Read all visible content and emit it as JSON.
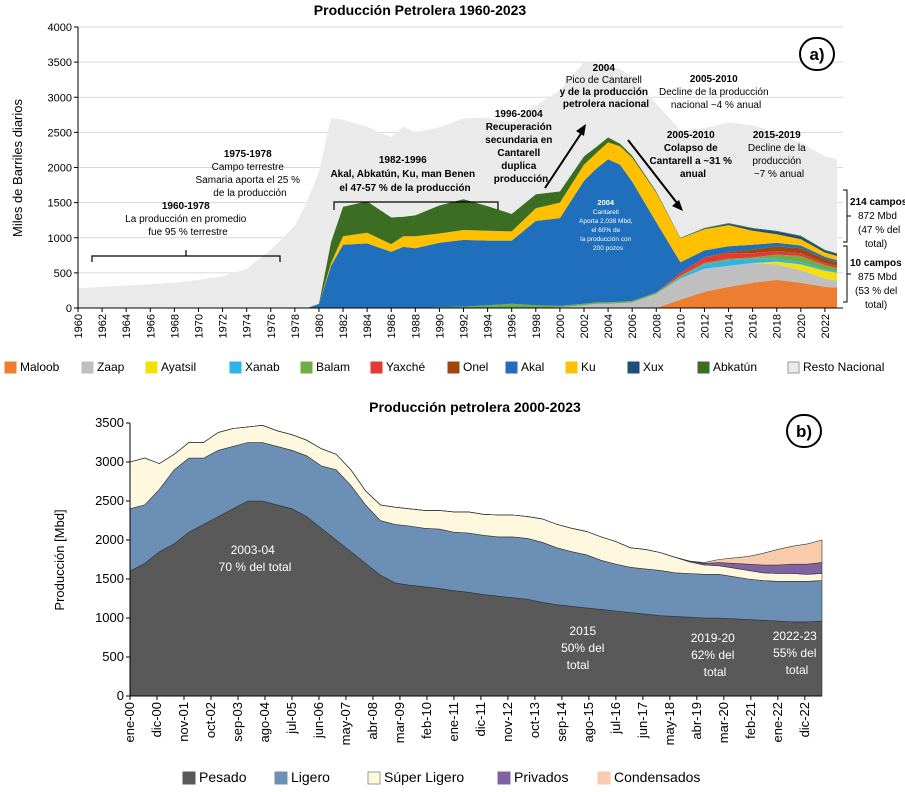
{
  "chart_data": [
    {
      "type": "area",
      "badge": "a)",
      "title": "Producción Petrolera 1960-2023",
      "ylabel": "Miles de Barriles diarios",
      "xlabel": "",
      "ylim": [
        0,
        4000
      ],
      "yticks": [
        "0",
        "500",
        "1000",
        "1500",
        "2000",
        "2500",
        "3000",
        "3500",
        "4000"
      ],
      "x": [
        1960,
        1962,
        1964,
        1966,
        1968,
        1970,
        1972,
        1974,
        1976,
        1978,
        1979,
        1980,
        1981,
        1982,
        1984,
        1986,
        1987,
        1988,
        1990,
        1992,
        1994,
        1996,
        1998,
        2000,
        2002,
        2003,
        2004,
        2005,
        2006,
        2008,
        2010,
        2012,
        2014,
        2016,
        2018,
        2020,
        2022,
        2023
      ],
      "xtick_labels": [
        "1960",
        "1962",
        "1964",
        "1966",
        "1968",
        "1970",
        "1972",
        "1974",
        "1976",
        "1978",
        "1980",
        "1982",
        "1984",
        "1986",
        "1988",
        "1990",
        "1992",
        "1994",
        "1996",
        "1998",
        "2000",
        "2002",
        "2004",
        "2006",
        "2008",
        "2010",
        "2012",
        "2014",
        "2016",
        "2018",
        "2020",
        "2022"
      ],
      "series": [
        {
          "name": "Maloob",
          "color": "#ed7d31",
          "values": [
            0,
            0,
            0,
            0,
            0,
            0,
            0,
            0,
            0,
            0,
            0,
            0,
            0,
            0,
            0,
            0,
            0,
            0,
            0,
            0,
            0,
            0,
            0,
            0,
            0,
            0,
            0,
            0,
            0,
            0,
            120,
            230,
            300,
            360,
            400,
            360,
            300,
            290
          ]
        },
        {
          "name": "Zaap",
          "color": "#bfbfbf",
          "values": [
            0,
            0,
            0,
            0,
            0,
            0,
            0,
            0,
            0,
            0,
            0,
            0,
            0,
            0,
            0,
            0,
            0,
            0,
            0,
            0,
            0,
            0,
            0,
            10,
            40,
            60,
            60,
            70,
            80,
            200,
            300,
            330,
            300,
            280,
            220,
            180,
            120,
            100
          ]
        },
        {
          "name": "Ayatsil",
          "color": "#f5e10a",
          "values": [
            0,
            0,
            0,
            0,
            0,
            0,
            0,
            0,
            0,
            0,
            0,
            0,
            0,
            0,
            0,
            0,
            0,
            0,
            0,
            0,
            0,
            0,
            0,
            0,
            0,
            0,
            0,
            0,
            0,
            0,
            0,
            0,
            0,
            0,
            40,
            80,
            110,
            110
          ]
        },
        {
          "name": "Xanab",
          "color": "#2eb4e6",
          "values": [
            0,
            0,
            0,
            0,
            0,
            0,
            0,
            0,
            0,
            0,
            0,
            0,
            0,
            0,
            0,
            0,
            0,
            0,
            0,
            0,
            0,
            0,
            0,
            0,
            0,
            0,
            0,
            0,
            0,
            0,
            20,
            60,
            80,
            60,
            40,
            30,
            20,
            20
          ]
        },
        {
          "name": "Balam",
          "color": "#70ad47",
          "values": [
            0,
            0,
            0,
            0,
            0,
            0,
            0,
            0,
            0,
            0,
            0,
            0,
            0,
            0,
            0,
            0,
            0,
            0,
            10,
            20,
            40,
            60,
            40,
            20,
            20,
            20,
            20,
            20,
            20,
            20,
            20,
            20,
            20,
            20,
            60,
            90,
            60,
            50
          ]
        },
        {
          "name": "Yaxché",
          "color": "#e53935",
          "values": [
            0,
            0,
            0,
            0,
            0,
            0,
            0,
            0,
            0,
            0,
            0,
            0,
            0,
            0,
            0,
            0,
            0,
            0,
            0,
            0,
            0,
            0,
            0,
            0,
            0,
            0,
            0,
            0,
            0,
            0,
            40,
            80,
            80,
            60,
            50,
            40,
            30,
            30
          ]
        },
        {
          "name": "Onel",
          "color": "#9e480e",
          "values": [
            0,
            0,
            0,
            0,
            0,
            0,
            0,
            0,
            0,
            0,
            0,
            0,
            0,
            0,
            0,
            0,
            0,
            0,
            0,
            0,
            0,
            0,
            0,
            0,
            0,
            0,
            0,
            0,
            0,
            0,
            0,
            0,
            20,
            50,
            70,
            70,
            60,
            50
          ]
        },
        {
          "name": "Akal",
          "color": "#1f6fbd",
          "values": [
            0,
            0,
            0,
            0,
            0,
            0,
            0,
            0,
            0,
            0,
            0,
            50,
            600,
            900,
            920,
            800,
            870,
            850,
            920,
            950,
            920,
            900,
            1200,
            1250,
            1750,
            1900,
            2038,
            1950,
            1700,
            1000,
            150,
            100,
            80,
            70,
            50,
            40,
            30,
            30
          ]
        },
        {
          "name": "Ku",
          "color": "#ffc000",
          "values": [
            0,
            0,
            0,
            0,
            0,
            0,
            0,
            0,
            0,
            0,
            0,
            0,
            40,
            120,
            150,
            110,
            150,
            170,
            130,
            140,
            140,
            130,
            180,
            220,
            230,
            220,
            240,
            260,
            340,
            420,
            340,
            300,
            300,
            200,
            120,
            90,
            60,
            60
          ]
        },
        {
          "name": "Xux",
          "color": "#1f4e79",
          "values": [
            0,
            0,
            0,
            0,
            0,
            0,
            0,
            0,
            0,
            0,
            0,
            0,
            0,
            0,
            0,
            0,
            0,
            0,
            0,
            0,
            0,
            0,
            0,
            0,
            0,
            0,
            0,
            0,
            0,
            0,
            0,
            10,
            20,
            30,
            40,
            40,
            30,
            30
          ]
        },
        {
          "name": "Abkatún",
          "color": "#3b6e22",
          "values": [
            0,
            0,
            0,
            0,
            0,
            0,
            0,
            0,
            0,
            0,
            0,
            10,
            300,
            420,
            450,
            380,
            280,
            300,
            400,
            440,
            350,
            250,
            200,
            160,
            120,
            90,
            70,
            40,
            30,
            20,
            10,
            10,
            10,
            10,
            10,
            10,
            10,
            10
          ]
        },
        {
          "name": "Resto Nacional",
          "color": "#eaeaea",
          "values": [
            280,
            300,
            320,
            340,
            360,
            400,
            450,
            560,
            830,
            1170,
            1510,
            1880,
            1760,
            1240,
            1060,
            1140,
            1280,
            1180,
            1110,
            1150,
            1260,
            1300,
            1260,
            1440,
            1340,
            1190,
            1030,
            1060,
            1130,
            1250,
            1530,
            1420,
            1430,
            1460,
            1400,
            1320,
            1330,
            1340
          ]
        }
      ],
      "annotations": [
        {
          "lines": [
            "1960-1978",
            "La producción en promedio",
            "fue 95 % terrestre"
          ]
        },
        {
          "lines": [
            "1975-1978",
            "Campo terrestre",
            "Samaria aporta el 25 %",
            "de la producción"
          ]
        },
        {
          "lines": [
            "1982-1996",
            "Akal, Abkatún, Ku, man  Benen",
            "el  47-57 % de la producción"
          ]
        },
        {
          "lines": [
            "1996-2004",
            "Recuperación",
            "secundaria en",
            "Cantarell",
            "duplica",
            "producción"
          ]
        },
        {
          "lines": [
            "2004",
            "Pico de Cantarell",
            "y de la producción",
            "petrolera nacional"
          ]
        },
        {
          "lines": [
            "2005-2010",
            "Decline de la producción",
            "nacional ~4 % anual"
          ]
        },
        {
          "lines": [
            "2005-2010",
            "Colapso de",
            "Cantarell a ~31 %",
            "anual"
          ]
        },
        {
          "lines": [
            "2015-2019",
            "Decline de la",
            "producción",
            "~7 % anual"
          ]
        },
        {
          "lines": [
            "2004",
            "Cantarell",
            "Aporta  2,038 Mbd,",
            "el 60% de",
            "la producción con",
            "200 pozos"
          ]
        },
        {
          "lines": [
            "214 campos",
            "872 Mbd",
            "(47 % del",
            "total)"
          ]
        },
        {
          "lines": [
            "10 campos",
            "875 Mbd",
            "(53 % del",
            "total)"
          ]
        }
      ],
      "legend_placement": "bottom"
    },
    {
      "type": "area",
      "badge": "b)",
      "title": "Producción petrolera 2000-2023",
      "ylabel": "Producción [Mbd]",
      "xlabel": "",
      "ylim": [
        0,
        3500
      ],
      "yticks": [
        "0",
        "500",
        "1000",
        "1500",
        "2000",
        "2500",
        "3000",
        "3500"
      ],
      "x": [
        "2000-01",
        "2000-07",
        "2001-01",
        "2001-07",
        "2002-01",
        "2002-07",
        "2003-01",
        "2003-07",
        "2004-01",
        "2004-07",
        "2005-01",
        "2005-07",
        "2006-01",
        "2006-07",
        "2007-01",
        "2007-07",
        "2008-01",
        "2008-07",
        "2009-01",
        "2009-07",
        "2010-01",
        "2010-07",
        "2011-01",
        "2011-07",
        "2012-01",
        "2012-07",
        "2013-01",
        "2013-07",
        "2014-01",
        "2014-07",
        "2015-01",
        "2015-07",
        "2016-01",
        "2016-07",
        "2017-01",
        "2017-07",
        "2018-01",
        "2018-07",
        "2019-01",
        "2019-07",
        "2020-01",
        "2020-07",
        "2021-01",
        "2021-07",
        "2022-01",
        "2022-07",
        "2023-01",
        "2023-07"
      ],
      "xtick_labels": [
        "ene-00",
        "dic-00",
        "nov-01",
        "oct-02",
        "sep-03",
        "ago-04",
        "jul-05",
        "jun-06",
        "may-07",
        "abr-08",
        "mar-09",
        "feb-10",
        "ene-11",
        "dic-11",
        "nov-12",
        "oct-13",
        "sep-14",
        "ago-15",
        "jul-16",
        "jun-17",
        "may-18",
        "abr-19",
        "mar-20",
        "feb-21",
        "ene-22",
        "dic-22"
      ],
      "series": [
        {
          "name": "Pesado",
          "color": "#595959",
          "values": [
            1600,
            1700,
            1850,
            1950,
            2100,
            2200,
            2300,
            2400,
            2500,
            2500,
            2450,
            2400,
            2300,
            2150,
            2000,
            1850,
            1700,
            1550,
            1450,
            1420,
            1400,
            1380,
            1350,
            1330,
            1300,
            1280,
            1260,
            1240,
            1200,
            1170,
            1150,
            1130,
            1110,
            1090,
            1070,
            1050,
            1030,
            1020,
            1010,
            1000,
            1000,
            990,
            980,
            970,
            960,
            950,
            950,
            960
          ]
        },
        {
          "name": "Ligero",
          "color": "#6b8fb5",
          "values": [
            800,
            750,
            800,
            950,
            950,
            850,
            850,
            800,
            750,
            750,
            750,
            750,
            780,
            800,
            900,
            850,
            750,
            700,
            750,
            760,
            750,
            760,
            750,
            760,
            760,
            760,
            780,
            780,
            770,
            730,
            700,
            680,
            630,
            600,
            580,
            580,
            580,
            560,
            560,
            560,
            560,
            540,
            520,
            510,
            510,
            520,
            520,
            520
          ]
        },
        {
          "name": "Súper Ligero",
          "color": "#fef8df",
          "values": [
            600,
            600,
            330,
            200,
            200,
            200,
            230,
            230,
            200,
            220,
            200,
            200,
            200,
            220,
            200,
            200,
            180,
            200,
            220,
            220,
            230,
            240,
            260,
            270,
            270,
            280,
            280,
            280,
            300,
            300,
            300,
            300,
            300,
            290,
            250,
            250,
            230,
            200,
            150,
            120,
            110,
            110,
            110,
            100,
            100,
            100,
            90,
            90
          ]
        },
        {
          "name": "Privados",
          "color": "#8064a2",
          "values": [
            0,
            0,
            0,
            0,
            0,
            0,
            0,
            0,
            0,
            0,
            0,
            0,
            0,
            0,
            0,
            0,
            0,
            0,
            0,
            0,
            0,
            0,
            0,
            0,
            0,
            0,
            0,
            0,
            0,
            0,
            0,
            0,
            0,
            0,
            0,
            0,
            0,
            0,
            10,
            20,
            40,
            60,
            80,
            100,
            110,
            120,
            130,
            140
          ]
        },
        {
          "name": "Condensados",
          "color": "#f8cbad",
          "values": [
            0,
            0,
            0,
            0,
            0,
            0,
            0,
            0,
            0,
            0,
            0,
            0,
            0,
            0,
            0,
            0,
            0,
            0,
            0,
            0,
            0,
            0,
            0,
            0,
            0,
            0,
            0,
            0,
            0,
            0,
            0,
            0,
            0,
            0,
            0,
            0,
            0,
            0,
            0,
            10,
            40,
            70,
            100,
            150,
            200,
            230,
            260,
            290
          ]
        }
      ],
      "annotations": [
        {
          "lines": [
            "2003-04",
            "70 % del total"
          ]
        },
        {
          "lines": [
            "2015",
            "50% del",
            "total"
          ]
        },
        {
          "lines": [
            "2019-20",
            "62% del",
            "total"
          ]
        },
        {
          "lines": [
            "2022-23",
            "55% del",
            "total"
          ]
        }
      ],
      "legend_placement": "bottom"
    }
  ]
}
